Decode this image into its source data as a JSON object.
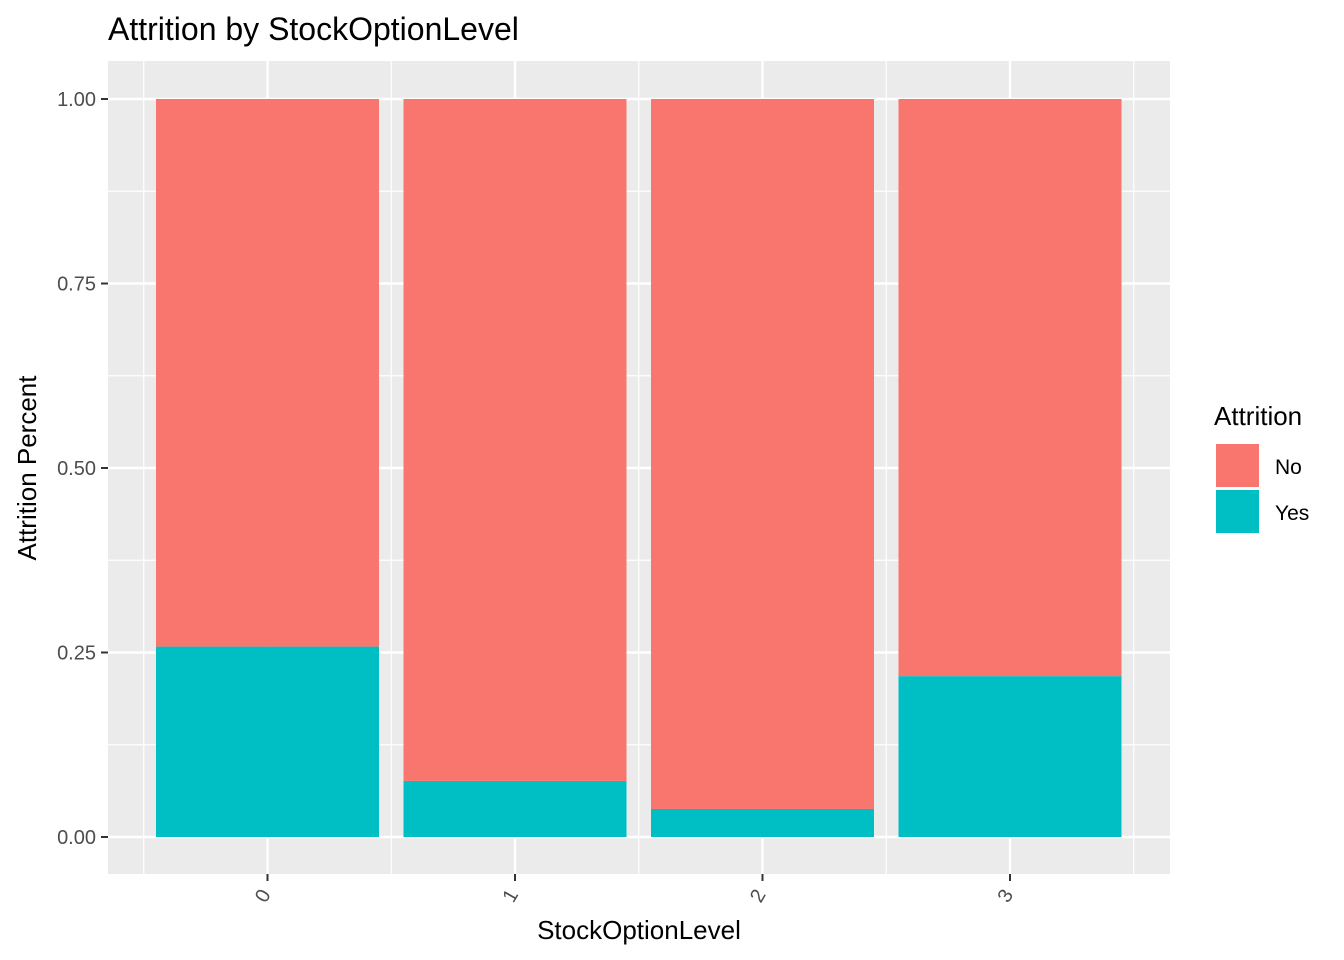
{
  "chart_data": {
    "type": "bar",
    "stacked": true,
    "title": "Attrition by StockOptionLevel",
    "xlabel": "StockOptionLevel",
    "ylabel": "Attrition Percent",
    "categories": [
      "0",
      "1",
      "2",
      "3"
    ],
    "ylim": [
      0,
      1
    ],
    "yticks": [
      "0.00",
      "0.25",
      "0.50",
      "0.75",
      "1.00"
    ],
    "ytick_values": [
      0,
      0.25,
      0.5,
      0.75,
      1.0
    ],
    "series": [
      {
        "name": "Yes",
        "color": "#00BFC4",
        "values": [
          0.258,
          0.076,
          0.038,
          0.218
        ]
      },
      {
        "name": "No",
        "color": "#F8766D",
        "values": [
          0.742,
          0.924,
          0.962,
          0.782
        ]
      }
    ],
    "legend": {
      "title": "Attrition",
      "position": "right",
      "items": [
        {
          "label": "No",
          "color": "#F8766D"
        },
        {
          "label": "Yes",
          "color": "#00BFC4"
        }
      ]
    },
    "grid": true,
    "panel_background": "#EBEBEB"
  }
}
